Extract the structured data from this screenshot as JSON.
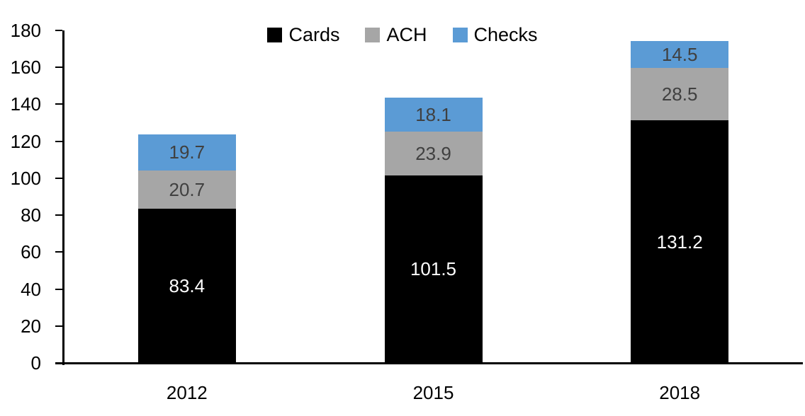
{
  "chart_data": {
    "type": "bar",
    "stacked": true,
    "orientation": "vertical",
    "title": "",
    "xlabel": "",
    "ylabel": "",
    "categories": [
      "2012",
      "2015",
      "2018"
    ],
    "series": [
      {
        "name": "Cards",
        "color": "#000000",
        "label_color": "#ffffff",
        "values": [
          83.4,
          101.5,
          131.2
        ]
      },
      {
        "name": "ACH",
        "color": "#a6a6a6",
        "label_color": "#404040",
        "values": [
          20.7,
          23.9,
          28.5
        ]
      },
      {
        "name": "Checks",
        "color": "#5b9bd5",
        "label_color": "#404040",
        "values": [
          19.7,
          18.1,
          14.5
        ]
      }
    ],
    "value_label_decimals": 1,
    "ylim": [
      0,
      180
    ],
    "yticks": [
      0,
      20,
      40,
      60,
      80,
      100,
      120,
      140,
      160,
      180
    ],
    "legend": {
      "position": "top",
      "entries": [
        "Cards",
        "ACH",
        "Checks"
      ]
    },
    "grid": false,
    "axis_color": "#000000",
    "tick_label_color": "#000000"
  }
}
